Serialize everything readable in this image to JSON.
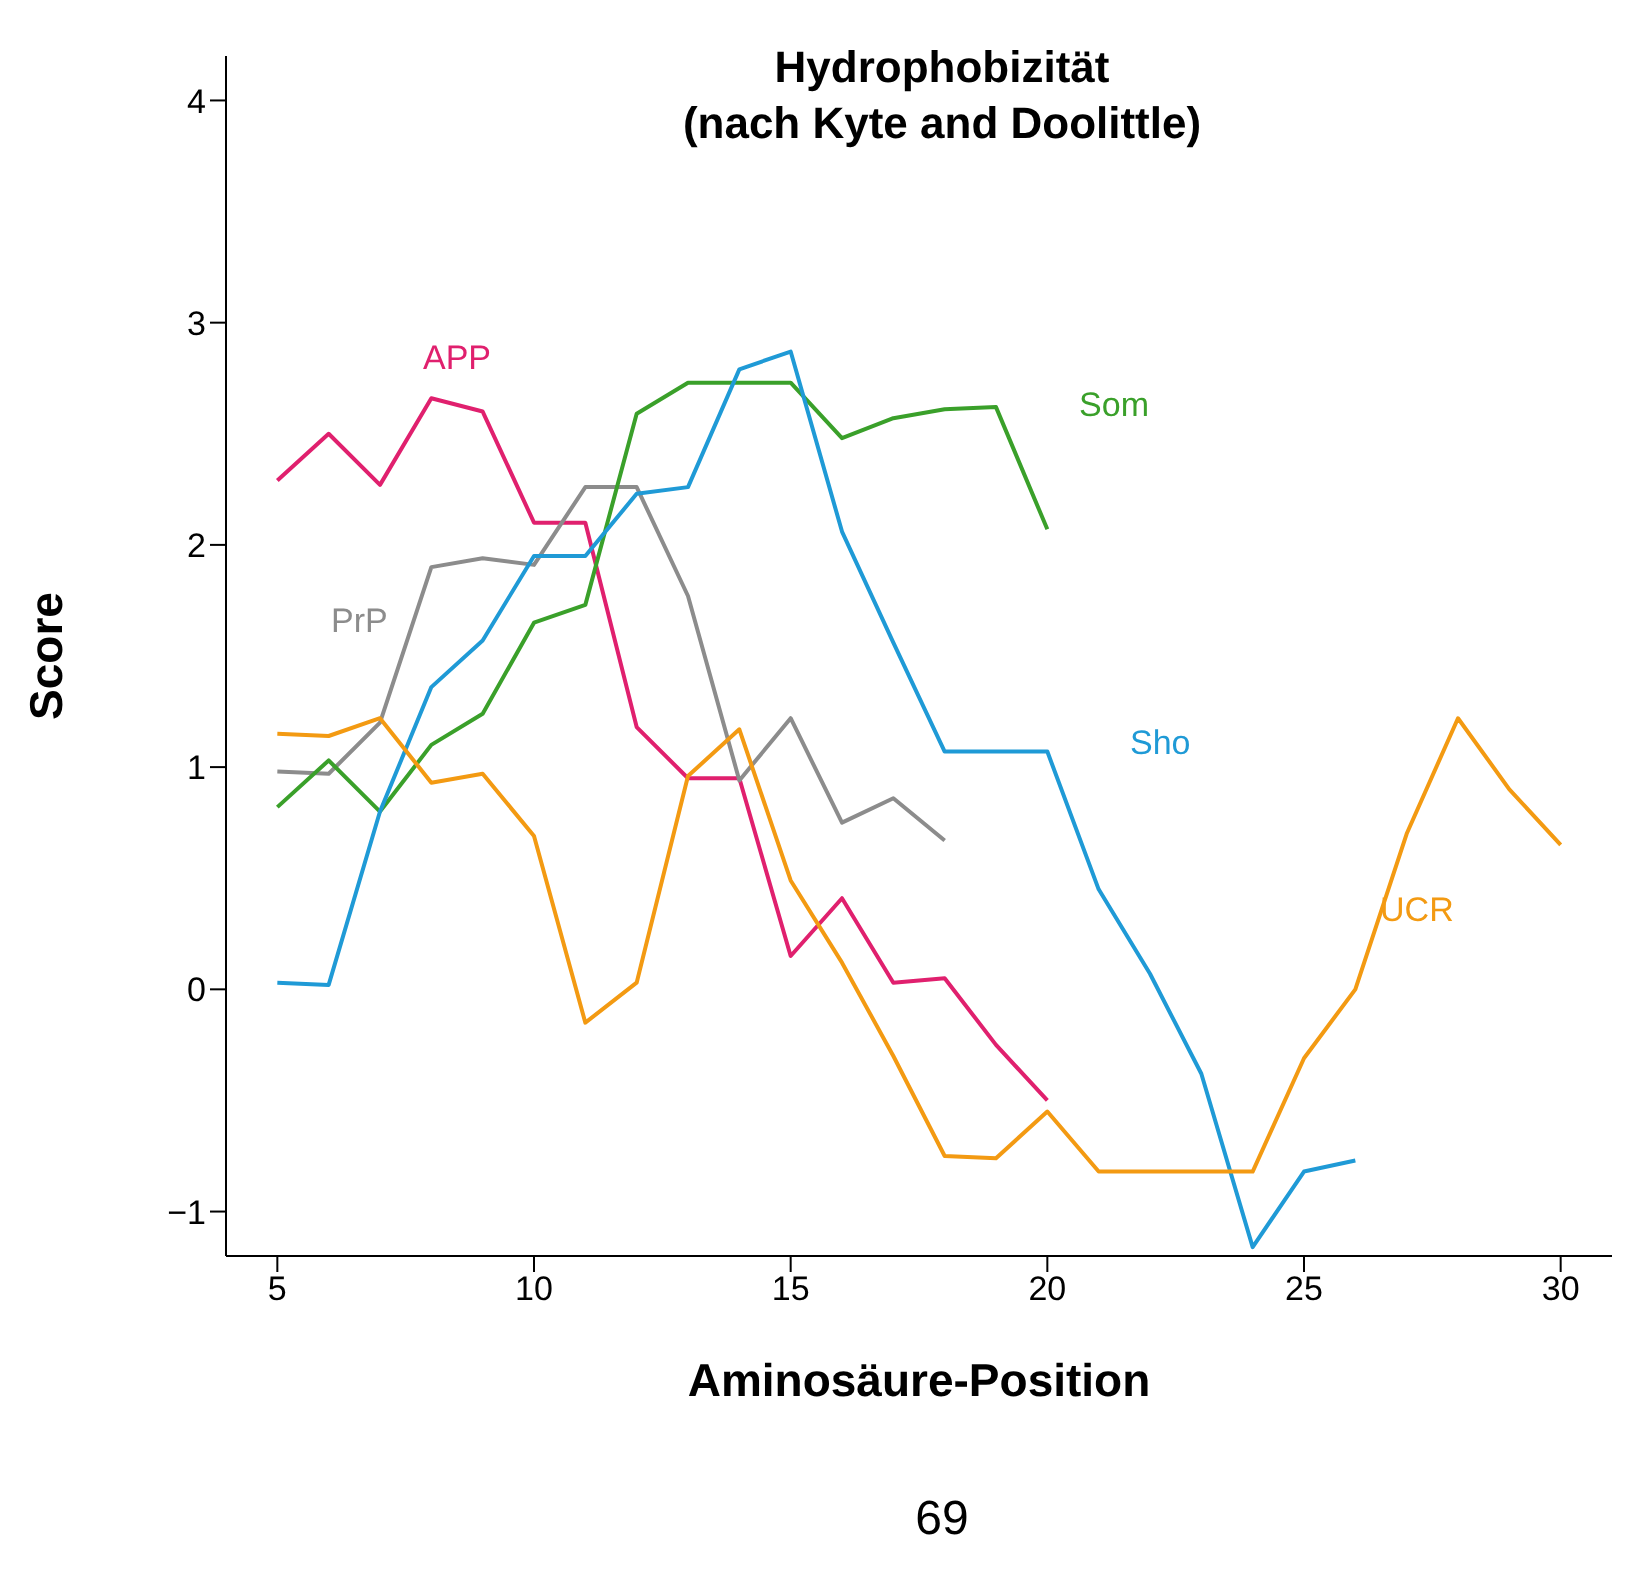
{
  "chart_data": {
    "type": "line",
    "title": "Hydrophobizität\n(nach Kyte and Doolittle)",
    "xlabel": "Aminosäure-Position",
    "ylabel": "Score",
    "annotations": [
      "69"
    ],
    "xlim": [
      4,
      31
    ],
    "xticks": [
      5,
      10,
      15,
      20,
      25,
      30
    ],
    "ylim": [
      -1.2,
      4.2
    ],
    "yticks": [
      {
        "value": -1,
        "label": "−1"
      },
      0,
      1,
      2,
      3,
      4
    ],
    "marker": "none",
    "line_style": "solid",
    "series": [
      {
        "name": "APP",
        "color": "#e0206e",
        "x": [
          5,
          6,
          7,
          8,
          9,
          10,
          11,
          12,
          13,
          14,
          15,
          16,
          17,
          18,
          19,
          20
        ],
        "values": [
          2.29,
          2.5,
          2.27,
          2.66,
          2.6,
          2.1,
          2.1,
          1.18,
          0.95,
          0.95,
          0.15,
          0.41,
          0.03,
          0.05,
          -0.25,
          -0.5
        ]
      },
      {
        "name": "PrP",
        "color": "#8c8c8c",
        "x": [
          5,
          6,
          7,
          8,
          9,
          10,
          11,
          12,
          13,
          14,
          15,
          16,
          17,
          18
        ],
        "values": [
          0.98,
          0.97,
          1.2,
          1.9,
          1.94,
          1.91,
          2.26,
          2.26,
          1.77,
          0.94,
          1.22,
          0.75,
          0.86,
          0.67
        ]
      },
      {
        "name": "Som",
        "color": "#3aa02a",
        "x": [
          5,
          6,
          7,
          8,
          9,
          10,
          11,
          12,
          13,
          14,
          15,
          16,
          17,
          18,
          19,
          20
        ],
        "values": [
          0.82,
          1.03,
          0.8,
          1.1,
          1.24,
          1.65,
          1.73,
          2.59,
          2.73,
          2.73,
          2.73,
          2.48,
          2.57,
          2.61,
          2.62,
          2.07
        ]
      },
      {
        "name": "Sho",
        "color": "#1f9ad6",
        "x": [
          5,
          6,
          7,
          8,
          9,
          10,
          11,
          12,
          13,
          14,
          15,
          16,
          17,
          18,
          19,
          20,
          21,
          22,
          23,
          24,
          25,
          26
        ],
        "values": [
          0.03,
          0.02,
          0.8,
          1.36,
          1.57,
          1.95,
          1.95,
          2.23,
          2.26,
          2.79,
          2.87,
          2.06,
          1.56,
          1.07,
          1.07,
          1.07,
          0.45,
          0.07,
          -0.38,
          -1.16,
          -0.82,
          -0.77
        ]
      },
      {
        "name": "UCR",
        "color": "#f39a12",
        "x": [
          5,
          6,
          7,
          8,
          9,
          10,
          11,
          12,
          13,
          14,
          15,
          16,
          17,
          18,
          19,
          20,
          21,
          22,
          23,
          24,
          25,
          26,
          27,
          28,
          29,
          30
        ],
        "values": [
          1.15,
          1.14,
          1.22,
          0.93,
          0.97,
          0.69,
          -0.15,
          0.03,
          0.96,
          1.17,
          0.49,
          0.12,
          -0.3,
          -0.75,
          -0.76,
          -0.55,
          -0.82,
          -0.82,
          -0.82,
          -0.82,
          -0.31,
          0.0,
          0.7,
          1.22,
          0.9,
          0.65
        ]
      }
    ]
  }
}
